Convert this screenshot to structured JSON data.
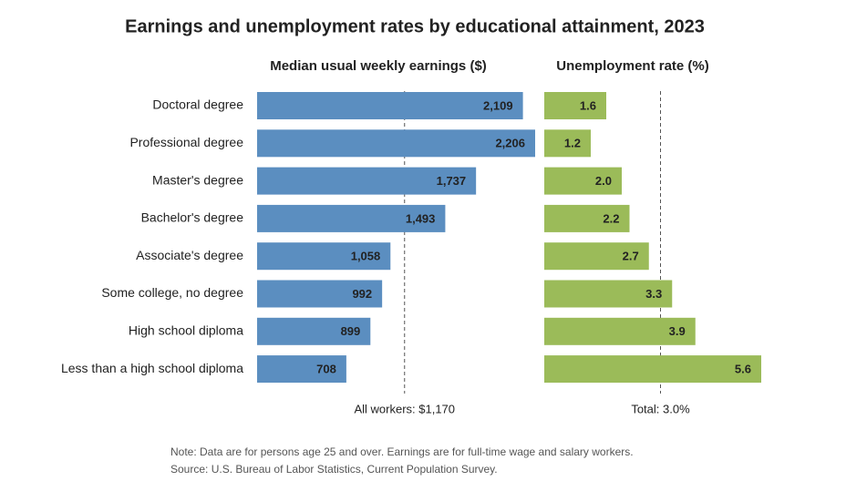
{
  "title": "Earnings and unemployment rates by educational attainment, 2023",
  "chart_data": [
    {
      "type": "bar",
      "orientation": "horizontal",
      "title": "Median usual weekly earnings ($)",
      "categories": [
        "Doctoral degree",
        "Professional degree",
        "Master's degree",
        "Bachelor's degree",
        "Associate's degree",
        "Some college, no degree",
        "High school diploma",
        "Less than a high school diploma"
      ],
      "values": [
        2109,
        2206,
        1737,
        1493,
        1058,
        992,
        899,
        708
      ],
      "value_labels": [
        "2,109",
        "2,206",
        "1,737",
        "1,493",
        "1,058",
        "992",
        "899",
        "708"
      ],
      "color": "#5b8ec0",
      "reference": {
        "value": 1170,
        "label": "All workers: $1,170"
      }
    },
    {
      "type": "bar",
      "orientation": "horizontal",
      "title": "Unemployment rate (%)",
      "values": [
        1.6,
        1.2,
        2.0,
        2.2,
        2.7,
        3.3,
        3.9,
        5.6
      ],
      "value_labels": [
        "1.6",
        "1.2",
        "2.0",
        "2.2",
        "2.7",
        "3.3",
        "3.9",
        "5.6"
      ],
      "color": "#9bbb59",
      "reference": {
        "value": 3.0,
        "label": "Total: 3.0%"
      }
    }
  ],
  "notes": [
    "Note: Data are for persons age 25 and over. Earnings are for full-time wage and salary workers.",
    "Source: U.S. Bureau of Labor Statistics, Current Population Survey."
  ]
}
